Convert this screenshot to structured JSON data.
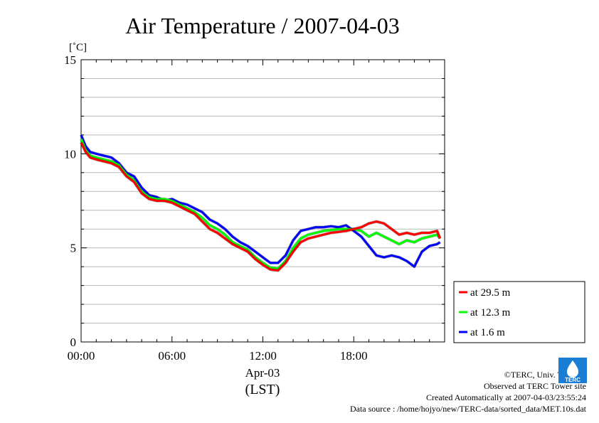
{
  "chart_data": {
    "type": "line",
    "title": "Air Temperature / 2007-04-03",
    "ylabel": "[˚C]",
    "xlabel_date": "Apr-03",
    "xlabel_tz": "(LST)",
    "xlim_hours": [
      0,
      24
    ],
    "ylim": [
      0,
      15
    ],
    "x_ticks": [
      {
        "hour": 0,
        "label": "00:00"
      },
      {
        "hour": 6,
        "label": "06:00"
      },
      {
        "hour": 12,
        "label": "12:00"
      },
      {
        "hour": 18,
        "label": "18:00"
      }
    ],
    "y_ticks": [
      {
        "value": 0,
        "label": "0"
      },
      {
        "value": 5,
        "label": "5"
      },
      {
        "value": 10,
        "label": "10"
      },
      {
        "value": 15,
        "label": "15"
      }
    ],
    "grid": true,
    "legend_position": "bottom-right, outside plot",
    "series": [
      {
        "name": "at 29.5 m",
        "color": "#ff0000",
        "points": [
          [
            0,
            10.6
          ],
          [
            0.3,
            10.1
          ],
          [
            0.6,
            9.8
          ],
          [
            1.0,
            9.7
          ],
          [
            1.5,
            9.6
          ],
          [
            2.0,
            9.5
          ],
          [
            2.5,
            9.3
          ],
          [
            3.0,
            8.8
          ],
          [
            3.5,
            8.5
          ],
          [
            4.0,
            7.9
          ],
          [
            4.5,
            7.6
          ],
          [
            5.0,
            7.5
          ],
          [
            5.5,
            7.5
          ],
          [
            6.0,
            7.4
          ],
          [
            6.5,
            7.2
          ],
          [
            7.0,
            7.0
          ],
          [
            7.5,
            6.8
          ],
          [
            8.0,
            6.4
          ],
          [
            8.5,
            6.0
          ],
          [
            9.0,
            5.8
          ],
          [
            9.5,
            5.5
          ],
          [
            10.0,
            5.2
          ],
          [
            10.5,
            5.0
          ],
          [
            11.0,
            4.8
          ],
          [
            11.5,
            4.4
          ],
          [
            12.0,
            4.1
          ],
          [
            12.5,
            3.85
          ],
          [
            13.0,
            3.8
          ],
          [
            13.5,
            4.2
          ],
          [
            14.0,
            4.8
          ],
          [
            14.5,
            5.3
          ],
          [
            15.0,
            5.5
          ],
          [
            15.5,
            5.6
          ],
          [
            16.0,
            5.7
          ],
          [
            16.5,
            5.8
          ],
          [
            17.0,
            5.85
          ],
          [
            17.5,
            5.9
          ],
          [
            18.0,
            6.0
          ],
          [
            18.5,
            6.1
          ],
          [
            19.0,
            6.3
          ],
          [
            19.5,
            6.4
          ],
          [
            20.0,
            6.3
          ],
          [
            20.5,
            6.0
          ],
          [
            21.0,
            5.7
          ],
          [
            21.5,
            5.8
          ],
          [
            22.0,
            5.7
          ],
          [
            22.5,
            5.8
          ],
          [
            23.0,
            5.8
          ],
          [
            23.5,
            5.9
          ],
          [
            23.7,
            5.5
          ]
        ]
      },
      {
        "name": "at 12.3 m",
        "color": "#00ff00",
        "points": [
          [
            0,
            10.8
          ],
          [
            0.3,
            10.2
          ],
          [
            0.6,
            9.9
          ],
          [
            1.0,
            9.8
          ],
          [
            1.5,
            9.7
          ],
          [
            2.0,
            9.6
          ],
          [
            2.5,
            9.4
          ],
          [
            3.0,
            8.9
          ],
          [
            3.5,
            8.6
          ],
          [
            4.0,
            8.0
          ],
          [
            4.5,
            7.7
          ],
          [
            5.0,
            7.6
          ],
          [
            5.5,
            7.6
          ],
          [
            6.0,
            7.5
          ],
          [
            6.5,
            7.3
          ],
          [
            7.0,
            7.1
          ],
          [
            7.5,
            6.9
          ],
          [
            8.0,
            6.6
          ],
          [
            8.5,
            6.2
          ],
          [
            9.0,
            6.0
          ],
          [
            9.5,
            5.7
          ],
          [
            10.0,
            5.3
          ],
          [
            10.5,
            5.1
          ],
          [
            11.0,
            4.9
          ],
          [
            11.5,
            4.5
          ],
          [
            12.0,
            4.2
          ],
          [
            12.5,
            3.95
          ],
          [
            13.0,
            3.9
          ],
          [
            13.5,
            4.3
          ],
          [
            14.0,
            5.0
          ],
          [
            14.5,
            5.5
          ],
          [
            15.0,
            5.7
          ],
          [
            15.5,
            5.8
          ],
          [
            16.0,
            5.9
          ],
          [
            16.5,
            5.95
          ],
          [
            17.0,
            6.0
          ],
          [
            17.5,
            6.0
          ],
          [
            18.0,
            6.0
          ],
          [
            18.5,
            5.9
          ],
          [
            19.0,
            5.6
          ],
          [
            19.5,
            5.8
          ],
          [
            20.0,
            5.6
          ],
          [
            20.5,
            5.4
          ],
          [
            21.0,
            5.2
          ],
          [
            21.5,
            5.4
          ],
          [
            22.0,
            5.3
          ],
          [
            22.5,
            5.5
          ],
          [
            23.0,
            5.6
          ],
          [
            23.5,
            5.7
          ],
          [
            23.7,
            5.5
          ]
        ]
      },
      {
        "name": "at 1.6 m",
        "color": "#0000ff",
        "points": [
          [
            0,
            11.0
          ],
          [
            0.3,
            10.4
          ],
          [
            0.6,
            10.1
          ],
          [
            1.0,
            10.0
          ],
          [
            1.5,
            9.9
          ],
          [
            2.0,
            9.8
          ],
          [
            2.5,
            9.5
          ],
          [
            3.0,
            9.0
          ],
          [
            3.5,
            8.8
          ],
          [
            4.0,
            8.2
          ],
          [
            4.5,
            7.8
          ],
          [
            5.0,
            7.7
          ],
          [
            5.5,
            7.5
          ],
          [
            6.0,
            7.6
          ],
          [
            6.5,
            7.4
          ],
          [
            7.0,
            7.3
          ],
          [
            7.5,
            7.1
          ],
          [
            8.0,
            6.9
          ],
          [
            8.5,
            6.5
          ],
          [
            9.0,
            6.3
          ],
          [
            9.5,
            6.0
          ],
          [
            10.0,
            5.6
          ],
          [
            10.5,
            5.3
          ],
          [
            11.0,
            5.1
          ],
          [
            11.5,
            4.8
          ],
          [
            12.0,
            4.5
          ],
          [
            12.5,
            4.2
          ],
          [
            13.0,
            4.2
          ],
          [
            13.5,
            4.6
          ],
          [
            14.0,
            5.4
          ],
          [
            14.5,
            5.9
          ],
          [
            15.0,
            6.0
          ],
          [
            15.5,
            6.1
          ],
          [
            16.0,
            6.1
          ],
          [
            16.5,
            6.15
          ],
          [
            17.0,
            6.1
          ],
          [
            17.5,
            6.2
          ],
          [
            18.0,
            5.9
          ],
          [
            18.5,
            5.6
          ],
          [
            19.0,
            5.1
          ],
          [
            19.5,
            4.6
          ],
          [
            20.0,
            4.5
          ],
          [
            20.5,
            4.6
          ],
          [
            21.0,
            4.5
          ],
          [
            21.5,
            4.3
          ],
          [
            22.0,
            4.0
          ],
          [
            22.5,
            4.8
          ],
          [
            23.0,
            5.1
          ],
          [
            23.5,
            5.2
          ],
          [
            23.7,
            5.3
          ]
        ]
      }
    ]
  },
  "footer": {
    "copyright": "©TERC, Univ. Tsukuba",
    "site": "Observed at TERC Tower site",
    "created": "Created Automatically at 2007-04-03/23:55:24",
    "source": "Data source : /home/hojyo/new/TERC-data/sorted_data/MET.10s.dat"
  },
  "logo": {
    "text": "TERC",
    "color": "#1a7fd4"
  }
}
